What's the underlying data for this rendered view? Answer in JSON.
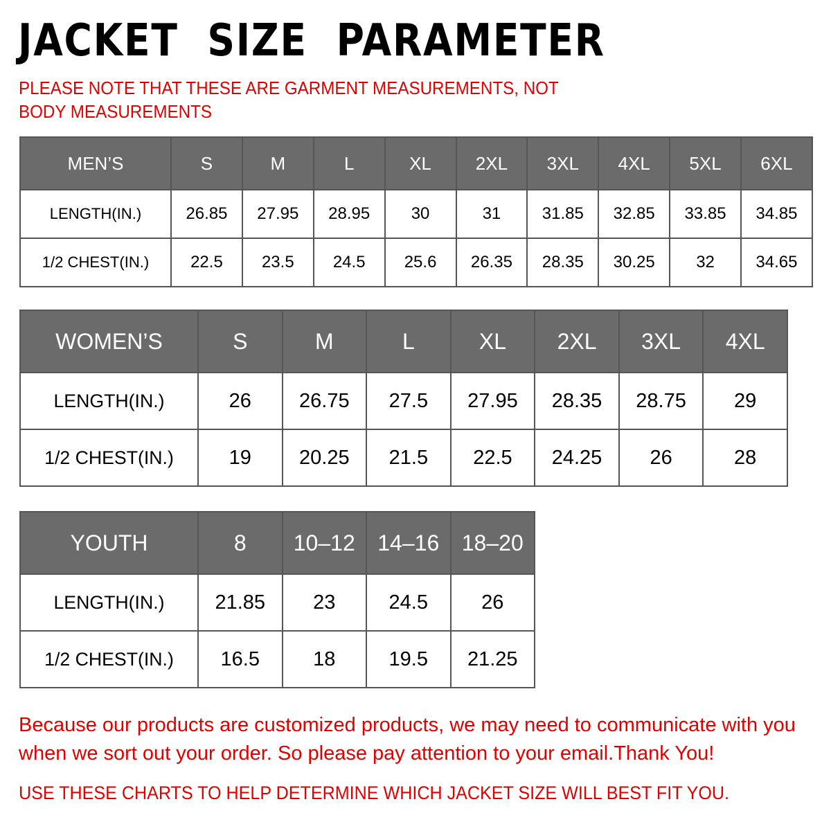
{
  "title": "JACKET  SIZE  PARAMETER",
  "note": "PLEASE NOTE THAT THESE ARE GARMENT MEASUREMENTS, NOT BODY MEASUREMENTS",
  "colors": {
    "header_bg": "#6b6b6b",
    "accent_red": "#e00000"
  },
  "tables": [
    {
      "id": "men",
      "header": [
        "MEN’S",
        "S",
        "M",
        "L",
        "XL",
        "2XL",
        "3XL",
        "4XL",
        "5XL",
        "6XL"
      ],
      "rows": [
        [
          "LENGTH(IN.)",
          "26.85",
          "27.95",
          "28.95",
          "30",
          "31",
          "31.85",
          "32.85",
          "33.85",
          "34.85"
        ],
        [
          "1/2 CHEST(IN.)",
          "22.5",
          "23.5",
          "24.5",
          "25.6",
          "26.35",
          "28.35",
          "30.25",
          "32",
          "34.65"
        ]
      ]
    },
    {
      "id": "women",
      "header": [
        "WOMEN’S",
        "S",
        "M",
        "L",
        "XL",
        "2XL",
        "3XL",
        "4XL"
      ],
      "rows": [
        [
          "LENGTH(IN.)",
          "26",
          "26.75",
          "27.5",
          "27.95",
          "28.35",
          "28.75",
          "29"
        ],
        [
          "1/2 CHEST(IN.)",
          "19",
          "20.25",
          "21.5",
          "22.5",
          "24.25",
          "26",
          "28"
        ]
      ]
    },
    {
      "id": "youth",
      "header": [
        "YOUTH",
        "8",
        "10–12",
        "14–16",
        "18–20"
      ],
      "rows": [
        [
          "LENGTH(IN.)",
          "21.85",
          "23",
          "24.5",
          "26"
        ],
        [
          "1/2 CHEST(IN.)",
          "16.5",
          "18",
          "19.5",
          "21.25"
        ]
      ]
    }
  ],
  "footer": {
    "message": "Because our products are customized products, we may need to communicate with you when we sort out your order. So please pay attention to your email.Thank You!",
    "instruction": "USE THESE CHARTS TO HELP DETERMINE WHICH JACKET SIZE WILL BEST FIT YOU."
  }
}
